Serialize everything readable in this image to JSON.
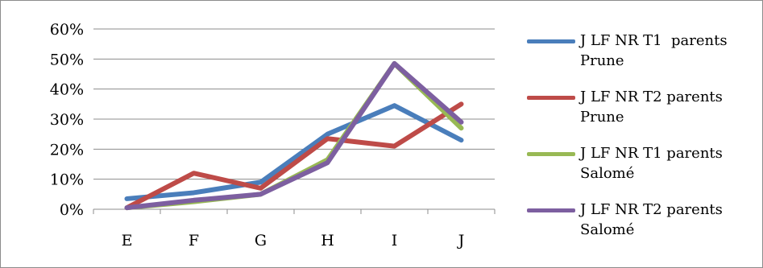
{
  "chart_data": {
    "type": "line",
    "categories": [
      "E",
      "F",
      "G",
      "H",
      "I",
      "J"
    ],
    "yticks": [
      "0%",
      "10%",
      "20%",
      "30%",
      "40%",
      "50%",
      "60%"
    ],
    "ylim": [
      0,
      60
    ],
    "grid": true,
    "legend_position": "right",
    "series": [
      {
        "name": "J LF NR T1  parents\nPrune",
        "color": "#4a7ebb",
        "values": [
          3.5,
          5.5,
          9,
          25,
          34.5,
          23
        ]
      },
      {
        "name": "J LF NR T2 parents\nPrune",
        "color": "#be4b48",
        "values": [
          0.5,
          12,
          7,
          23.5,
          21,
          35
        ]
      },
      {
        "name": "J LF NR T1 parents\nSalomé",
        "color": "#98b954",
        "values": [
          0.5,
          2.5,
          5,
          16.5,
          48.5,
          27
        ]
      },
      {
        "name": "J LF NR T2 parents\nSalomé",
        "color": "#7d5fa0",
        "values": [
          0.5,
          3,
          5,
          15.5,
          48.5,
          29
        ]
      }
    ]
  }
}
